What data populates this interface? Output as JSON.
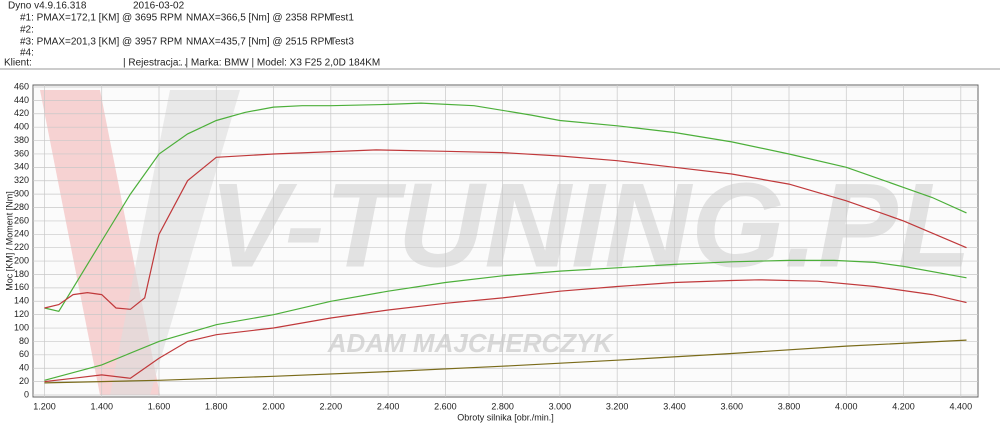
{
  "chart_data": {
    "type": "line",
    "title": "Dyno v4.9.16.318",
    "annotations": [
      "2016-03-02",
      "#1: PMAX=172,1 [KM] @ 3695 RPM",
      "NMAX=366,5 [Nm] @ 2358 RPM",
      "Test1",
      "#2:",
      "#3: PMAX=201,3 [KM] @ 3957 RPM",
      "NMAX=435,7 [Nm] @ 2515 RPM",
      "Test3",
      "#4:",
      "Klient:",
      "| Rejestracja: .",
      ". | Marka: BMW | Model: X3 F25 2,0D 184KM",
      "V-TUNING.PL",
      "ADAM MAJCHERCZYK"
    ],
    "x_label": "Obroty silnika [obr./min.]",
    "y_label": "Moc [KM] / Moment [Nm]",
    "xlim": [
      1160,
      4460
    ],
    "xticks": [
      {
        "value": 1200,
        "label": "1.200"
      },
      {
        "value": 1400,
        "label": "1.400"
      },
      {
        "value": 1600,
        "label": "1.600"
      },
      {
        "value": 1800,
        "label": "1.800"
      },
      {
        "value": 2000,
        "label": "2.000"
      },
      {
        "value": 2200,
        "label": "2.200"
      },
      {
        "value": 2400,
        "label": "2.400"
      },
      {
        "value": 2600,
        "label": "2.600"
      },
      {
        "value": 2800,
        "label": "2.800"
      },
      {
        "value": 3000,
        "label": "3.000"
      },
      {
        "value": 3200,
        "label": "3.200"
      },
      {
        "value": 3400,
        "label": "3.400"
      },
      {
        "value": 3600,
        "label": "3.600"
      },
      {
        "value": 3800,
        "label": "3.800"
      },
      {
        "value": 4000,
        "label": "4.000"
      },
      {
        "value": 4200,
        "label": "4.200"
      },
      {
        "value": 4400,
        "label": "4.400"
      }
    ],
    "ylim": [
      0,
      460
    ],
    "yticks": [
      0,
      20,
      40,
      60,
      80,
      100,
      120,
      140,
      160,
      180,
      200,
      220,
      240,
      260,
      280,
      300,
      320,
      340,
      360,
      380,
      400,
      420,
      440,
      460
    ],
    "grid": true,
    "series": [
      {
        "color": "#4caf3a",
        "x": [
          1200,
          1250,
          1300,
          1400,
          1500,
          1600,
          1700,
          1800,
          1900,
          2000,
          2100,
          2200,
          2400,
          2515,
          2700,
          2900,
          3000,
          3200,
          3400,
          3600,
          3800,
          4000,
          4200,
          4300,
          4420
        ],
        "values": [
          130,
          125,
          160,
          230,
          300,
          360,
          390,
          410,
          422,
          430,
          432,
          432,
          434,
          436,
          432,
          418,
          410,
          402,
          392,
          378,
          360,
          340,
          310,
          295,
          272
        ]
      },
      {
        "color": "#c0393b",
        "x": [
          1200,
          1250,
          1300,
          1350,
          1400,
          1450,
          1500,
          1550,
          1600,
          1700,
          1800,
          2000,
          2358,
          2600,
          2800,
          3000,
          3200,
          3400,
          3600,
          3800,
          4000,
          4200,
          4420
        ],
        "values": [
          130,
          135,
          150,
          153,
          150,
          130,
          128,
          145,
          240,
          320,
          355,
          360,
          366,
          364,
          362,
          357,
          350,
          340,
          330,
          315,
          290,
          260,
          220
        ]
      },
      {
        "color": "#4caf3a",
        "x": [
          1200,
          1400,
          1600,
          1800,
          2000,
          2200,
          2400,
          2600,
          2800,
          3000,
          3200,
          3400,
          3600,
          3800,
          3957,
          4100,
          4200,
          4420
        ],
        "values": [
          22,
          45,
          80,
          105,
          120,
          140,
          155,
          168,
          178,
          185,
          190,
          195,
          199,
          201,
          201,
          198,
          192,
          175
        ]
      },
      {
        "color": "#c0393b",
        "x": [
          1200,
          1300,
          1400,
          1500,
          1600,
          1700,
          1800,
          2000,
          2200,
          2400,
          2600,
          2800,
          3000,
          3200,
          3400,
          3600,
          3695,
          3900,
          4100,
          4300,
          4420
        ],
        "values": [
          20,
          25,
          30,
          25,
          55,
          80,
          90,
          100,
          115,
          127,
          137,
          145,
          155,
          162,
          168,
          171,
          172,
          170,
          162,
          150,
          138
        ]
      },
      {
        "color": "#7a6b1a",
        "x": [
          1200,
          1600,
          2000,
          2400,
          2800,
          3200,
          3600,
          4000,
          4420
        ],
        "values": [
          18,
          22,
          28,
          35,
          43,
          52,
          62,
          73,
          82
        ]
      }
    ]
  }
}
